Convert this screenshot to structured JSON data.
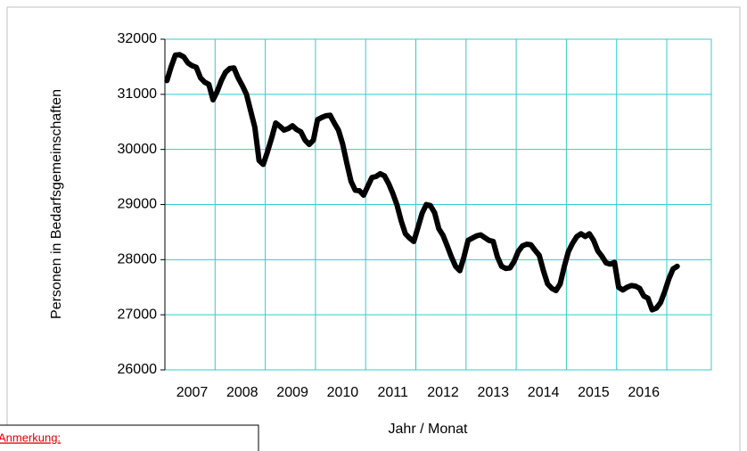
{
  "chart_data": {
    "type": "line",
    "x_label": "Jahr / Monat",
    "y_label": "Personen in Bedarfsgemeinschaften",
    "note": "Anmerkung:",
    "categories": [
      null,
      null,
      null,
      null,
      null,
      null,
      "2007",
      null,
      null,
      null,
      null,
      null,
      null,
      null,
      null,
      null,
      null,
      null,
      "2008",
      null,
      null,
      null,
      null,
      null,
      null,
      null,
      null,
      null,
      null,
      null,
      "2009",
      null,
      null,
      null,
      null,
      null,
      null,
      null,
      null,
      null,
      null,
      null,
      "2010",
      null,
      null,
      null,
      null,
      null,
      null,
      null,
      null,
      null,
      null,
      null,
      "2011",
      null,
      null,
      null,
      null,
      null,
      null,
      null,
      null,
      null,
      null,
      null,
      "2012",
      null,
      null,
      null,
      null,
      null,
      null,
      null,
      null,
      null,
      null,
      null,
      "2013",
      null,
      null,
      null,
      null,
      null,
      null,
      null,
      null,
      null,
      null,
      null,
      "2014",
      null,
      null,
      null,
      null,
      null,
      null,
      null,
      null,
      null,
      null,
      null,
      "2015",
      null,
      null,
      null,
      null,
      null,
      null,
      null,
      null,
      null,
      null,
      null,
      "2016",
      null,
      null,
      null,
      null,
      null,
      null,
      null,
      null
    ],
    "series": [
      {
        "color": "#000000",
        "values": [
          31250,
          31500,
          31710,
          31720,
          31680,
          31570,
          31520,
          31490,
          31300,
          31220,
          31180,
          30900,
          31050,
          31250,
          31400,
          31470,
          31480,
          31300,
          31160,
          31000,
          30700,
          30400,
          29800,
          29730,
          29950,
          30200,
          30480,
          30420,
          30350,
          30380,
          30430,
          30360,
          30320,
          30170,
          30090,
          30170,
          30540,
          30580,
          30610,
          30620,
          30480,
          30350,
          30100,
          29750,
          29420,
          29260,
          29250,
          29170,
          29330,
          29490,
          29510,
          29560,
          29520,
          29380,
          29200,
          28990,
          28700,
          28470,
          28390,
          28330,
          28580,
          28840,
          29000,
          28980,
          28850,
          28560,
          28440,
          28250,
          28050,
          27880,
          27800,
          28050,
          28350,
          28390,
          28430,
          28450,
          28400,
          28350,
          28330,
          28050,
          27880,
          27840,
          27850,
          27970,
          28150,
          28250,
          28280,
          28270,
          28170,
          28080,
          27800,
          27560,
          27480,
          27440,
          27560,
          27880,
          28150,
          28300,
          28420,
          28470,
          28420,
          28470,
          28350,
          28160,
          28060,
          27940,
          27920,
          27950,
          27500,
          27450,
          27500,
          27530,
          27520,
          27480,
          27340,
          27300,
          27090,
          27120,
          27220,
          27420,
          27650,
          27830,
          27880
        ]
      }
    ],
    "ylim": [
      26000,
      32000
    ],
    "yticks": [
      26000,
      27000,
      28000,
      29000,
      30000,
      31000,
      32000
    ],
    "grid": true
  }
}
